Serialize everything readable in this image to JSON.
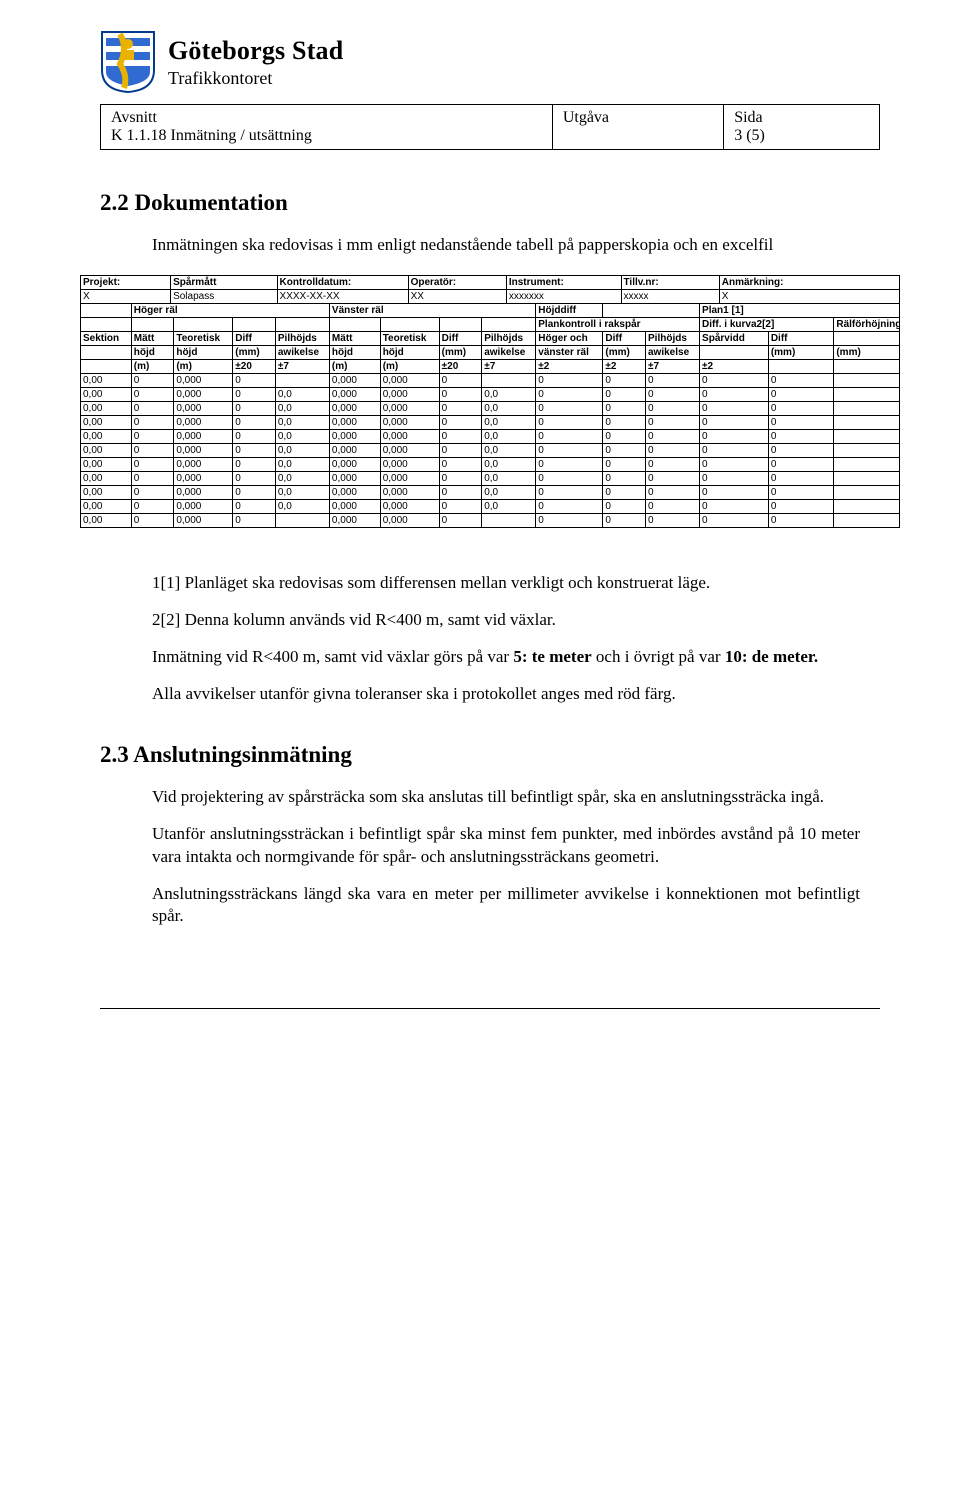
{
  "org": {
    "name": "Göteborgs Stad",
    "sub": "Trafikkontoret"
  },
  "header": {
    "col1_label": "Avsnitt",
    "col1_value": "K 1.1.18 Inmätning / utsättning",
    "col2_label": "Utgåva",
    "col3_label": "Sida",
    "col3_value": "3 (5)"
  },
  "section22": {
    "title": "2.2   Dokumentation",
    "intro": "Inmätningen ska redovisas i mm enligt nedanstående tabell på papperskopia och en excelfil",
    "note1": "1[1] Planläget ska redovisas som differensen mellan verkligt och konstruerat läge.",
    "note2": "2[2] Denna kolumn används vid R<400 m, samt vid växlar.",
    "note3a": "Inmätning vid R<400 m, samt vid växlar görs på var ",
    "note3b": "5: te meter",
    "note3c": " och i övrigt på var ",
    "note3d": "10: de meter.",
    "note4": "Alla avvikelser utanför givna toleranser ska i protokollet anges med röd färg."
  },
  "section23": {
    "title": "2.3   Anslutningsinmätning",
    "p1": "Vid projektering av spårsträcka som ska anslutas till befintligt spår, ska en anslutningssträcka ingå.",
    "p2": "Utanför anslutningssträckan i befintligt spår ska minst fem punkter, med inbördes avstånd på 10 meter vara intakta och normgivande för spår- och anslutningssträckans geometri.",
    "p3": "Anslutningssträckans längd ska vara en meter per millimeter avvikelse i konnektionen mot befintligt spår."
  },
  "spreadsheet": {
    "top_labels": [
      "Projekt:",
      "Spårmått",
      "Kontrolldatum:",
      "Operatör:",
      "Instrument:",
      "Tillv.nr:",
      "Anmärkning:"
    ],
    "top_values": [
      "X",
      "Solapass",
      "XXXX-XX-XX",
      "XX",
      "xxxxxxx",
      "xxxxx",
      "X"
    ],
    "group_row": {
      "g1": "Höger räl",
      "g2": "Vänster räl",
      "g3": "Höjddiff",
      "g4": "Plan1 [1]"
    },
    "group_row2": {
      "c1": "Plankontroll i rakspår",
      "c2": "Diff. i kurva2[2]",
      "c3": "Rälförhöjning"
    },
    "cols_row1": [
      "Sektion",
      "Mätt",
      "Teoretisk",
      "Diff",
      "Pilhöjds",
      "Mätt",
      "Teoretisk",
      "Diff",
      "Pilhöjds",
      "Höger och",
      "Diff",
      "Pilhöjds",
      "Spårvidd",
      "Diff"
    ],
    "cols_row2": [
      "",
      "höjd",
      "höjd",
      "(mm)",
      "awikelse",
      "höjd",
      "höjd",
      "(mm)",
      "awikelse",
      "vänster räl",
      "(mm)",
      "awikelse",
      "",
      "(mm)",
      "(mm)"
    ],
    "cols_row3": [
      "(m)",
      "(m)",
      "±20",
      "±7",
      "(m)",
      "(m)",
      "±20",
      "±7",
      "±2",
      "±2",
      "±7",
      "±2"
    ],
    "data_rows": [
      [
        "0,00",
        "0",
        "0,000",
        "0",
        "",
        "0,000",
        "0,000",
        "0",
        "",
        "0",
        "0",
        "0",
        "0",
        "0"
      ],
      [
        "0,00",
        "0",
        "0,000",
        "0",
        "0,0",
        "0,000",
        "0,000",
        "0",
        "0,0",
        "0",
        "0",
        "0",
        "0",
        "0"
      ],
      [
        "0,00",
        "0",
        "0,000",
        "0",
        "0,0",
        "0,000",
        "0,000",
        "0",
        "0,0",
        "0",
        "0",
        "0",
        "0",
        "0"
      ],
      [
        "0,00",
        "0",
        "0,000",
        "0",
        "0,0",
        "0,000",
        "0,000",
        "0",
        "0,0",
        "0",
        "0",
        "0",
        "0",
        "0"
      ],
      [
        "0,00",
        "0",
        "0,000",
        "0",
        "0,0",
        "0,000",
        "0,000",
        "0",
        "0,0",
        "0",
        "0",
        "0",
        "0",
        "0"
      ],
      [
        "0,00",
        "0",
        "0,000",
        "0",
        "0,0",
        "0,000",
        "0,000",
        "0",
        "0,0",
        "0",
        "0",
        "0",
        "0",
        "0"
      ],
      [
        "0,00",
        "0",
        "0,000",
        "0",
        "0,0",
        "0,000",
        "0,000",
        "0",
        "0,0",
        "0",
        "0",
        "0",
        "0",
        "0"
      ],
      [
        "0,00",
        "0",
        "0,000",
        "0",
        "0,0",
        "0,000",
        "0,000",
        "0",
        "0,0",
        "0",
        "0",
        "0",
        "0",
        "0"
      ],
      [
        "0,00",
        "0",
        "0,000",
        "0",
        "0,0",
        "0,000",
        "0,000",
        "0",
        "0,0",
        "0",
        "0",
        "0",
        "0",
        "0"
      ],
      [
        "0,00",
        "0",
        "0,000",
        "0",
        "0,0",
        "0,000",
        "0,000",
        "0",
        "0,0",
        "0",
        "0",
        "0",
        "0",
        "0"
      ],
      [
        "0,00",
        "0",
        "0,000",
        "0",
        "",
        "0,000",
        "0,000",
        "0",
        "",
        "0",
        "0",
        "0",
        "0",
        "0"
      ]
    ]
  }
}
